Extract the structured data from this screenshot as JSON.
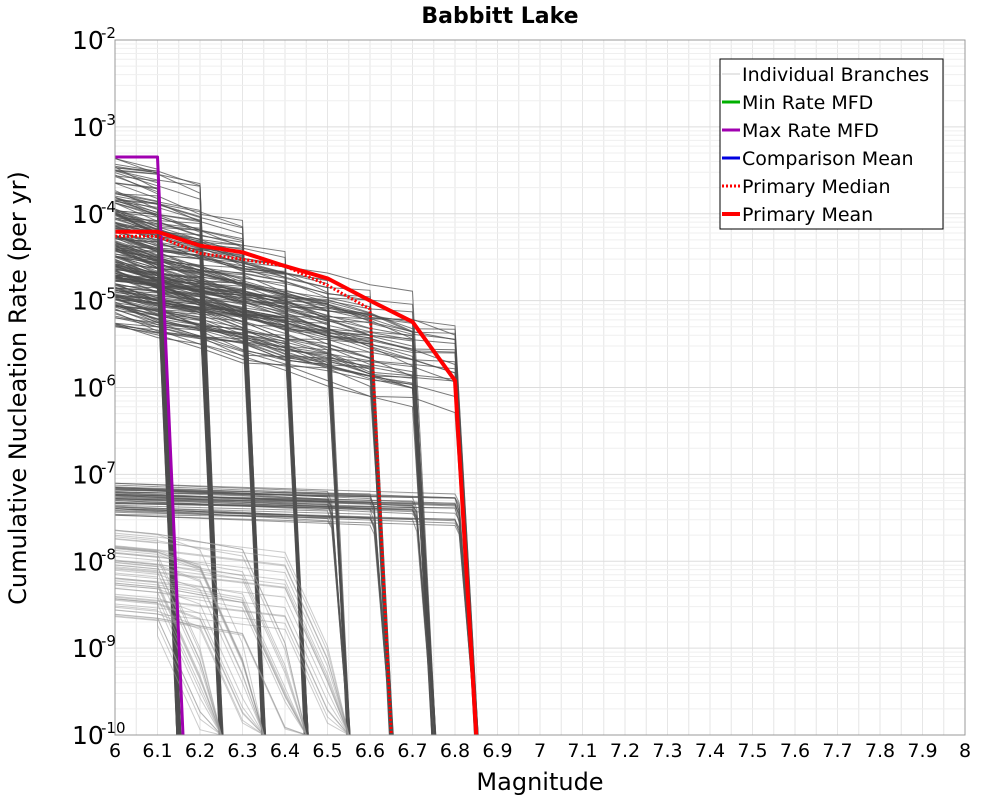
{
  "chart_data": {
    "type": "line",
    "title": "Babbitt Lake",
    "xlabel": "Magnitude",
    "ylabel": "Cumulative Nucleation Rate (per yr)",
    "xlim": [
      6,
      8
    ],
    "ylim": [
      1e-10,
      0.01
    ],
    "yscale": "log",
    "grid": true,
    "legend_position": "top-right",
    "x_ticks": [
      "6",
      "6.1",
      "6.2",
      "6.3",
      "6.4",
      "6.5",
      "6.6",
      "6.7",
      "6.8",
      "6.9",
      "7",
      "7.1",
      "7.2",
      "7.3",
      "7.4",
      "7.5",
      "7.6",
      "7.7",
      "7.8",
      "7.9",
      "8"
    ],
    "y_ticks": [
      {
        "base": "10",
        "exp": "-10",
        "value": 1e-10
      },
      {
        "base": "10",
        "exp": "-9",
        "value": 1e-09
      },
      {
        "base": "10",
        "exp": "-8",
        "value": 1e-08
      },
      {
        "base": "10",
        "exp": "-7",
        "value": 1e-07
      },
      {
        "base": "10",
        "exp": "-6",
        "value": 1e-06
      },
      {
        "base": "10",
        "exp": "-5",
        "value": 1e-05
      },
      {
        "base": "10",
        "exp": "-4",
        "value": 0.0001
      },
      {
        "base": "10",
        "exp": "-3",
        "value": 0.001
      },
      {
        "base": "10",
        "exp": "-2",
        "value": 0.01
      }
    ],
    "legend": [
      {
        "label": "Individual Branches",
        "color": "#cccccc",
        "style": "solid",
        "width": 1
      },
      {
        "label": "Min Rate MFD",
        "color": "#00b000",
        "style": "solid",
        "width": 3
      },
      {
        "label": "Max Rate MFD",
        "color": "#a000b0",
        "style": "solid",
        "width": 3
      },
      {
        "label": "Comparison Mean",
        "color": "#0000e0",
        "style": "solid",
        "width": 3
      },
      {
        "label": " Primary Median",
        "color": "#ff0000",
        "style": "dotted",
        "width": 3
      },
      {
        "label": "Primary Mean",
        "color": "#ff0000",
        "style": "solid",
        "width": 4
      }
    ],
    "branch_groups": [
      {
        "mmax": 6.15,
        "levels": [
          0.0004,
          0.0003,
          0.0002,
          0.00015,
          0.0001,
          7e-05,
          5e-05,
          3e-05,
          2e-05
        ],
        "decay": 0.55
      },
      {
        "mmax": 6.25,
        "levels": [
          0.0003,
          0.00015,
          0.0001,
          7e-05,
          5e-05,
          3e-05,
          2e-05,
          1.2e-05
        ],
        "decay": 0.6
      },
      {
        "mmax": 6.35,
        "levels": [
          0.00015,
          0.0001,
          7e-05,
          4e-05,
          2e-05,
          1.2e-05
        ],
        "decay": 0.6
      },
      {
        "mmax": 6.45,
        "levels": [
          0.0001,
          6e-05,
          4e-05,
          2.5e-05,
          1.5e-05,
          1e-05
        ],
        "decay": 0.6
      },
      {
        "mmax": 6.55,
        "levels": [
          5e-05,
          3e-05,
          2e-05,
          1e-05
        ],
        "decay": 0.6
      },
      {
        "mmax": 6.65,
        "levels": [
          4.5e-05,
          3e-05,
          2e-05,
          1.2e-05,
          8e-06
        ],
        "decay": 0.6
      },
      {
        "mmax": 6.75,
        "levels": [
          4e-05,
          2.5e-05,
          1.5e-05,
          8e-06,
          5e-06
        ],
        "decay": 0.6
      },
      {
        "mmax": 6.85,
        "levels": [
          2e-05,
          1.5e-05,
          1e-05,
          6e-06
        ],
        "decay": 0.65
      }
    ],
    "low_branch_groups": [
      {
        "mmax": 6.85,
        "levels": [
          7e-08,
          5e-08,
          4e-08
        ],
        "x_end": 6.8
      },
      {
        "mmax": 6.75,
        "levels": [
          6e-08,
          4.5e-08
        ],
        "x_end": 6.7
      },
      {
        "mmax": 6.65,
        "levels": [
          6e-08,
          4e-08
        ],
        "x_end": 6.6
      },
      {
        "mmax": 6.55,
        "levels": [
          7e-08,
          5e-08
        ],
        "x_end": 6.5
      }
    ],
    "faint_branches": [
      {
        "levels": [
          1.8e-08,
          1.2e-08,
          8e-09,
          5e-09,
          3e-09
        ],
        "drop_x": [
          6.1,
          6.2,
          6.3,
          6.4
        ]
      }
    ],
    "series": [
      {
        "name": "Max Rate MFD",
        "color": "#a000b0",
        "style": "solid",
        "width": 3,
        "x": [
          6.0,
          6.1,
          6.16
        ],
        "y": [
          0.00045,
          0.00045,
          1e-10
        ]
      },
      {
        "name": "Primary Median",
        "color": "#ff0000",
        "style": "dotted",
        "width": 3,
        "x": [
          6.0,
          6.1,
          6.2,
          6.3,
          6.4,
          6.5,
          6.6,
          6.65
        ],
        "y": [
          5.5e-05,
          5.5e-05,
          3.5e-05,
          3e-05,
          2.5e-05,
          1.5e-05,
          8e-06,
          1e-10
        ]
      },
      {
        "name": "Primary Mean",
        "color": "#ff0000",
        "style": "solid",
        "width": 4,
        "x": [
          6.0,
          6.1,
          6.2,
          6.3,
          6.4,
          6.5,
          6.6,
          6.7,
          6.8,
          6.85
        ],
        "y": [
          6.2e-05,
          6.2e-05,
          4.3e-05,
          3.6e-05,
          2.5e-05,
          1.8e-05,
          1e-05,
          5.7e-06,
          1.2e-06,
          1e-10
        ]
      }
    ]
  }
}
